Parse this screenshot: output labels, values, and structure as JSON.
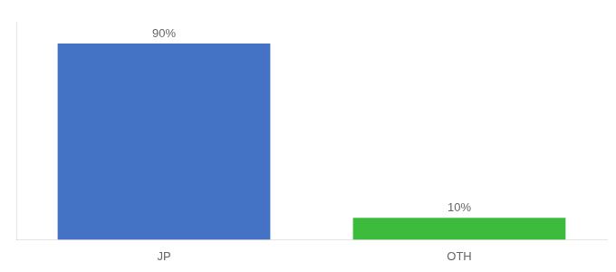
{
  "chart_data": {
    "type": "bar",
    "categories": [
      "JP",
      "OTH"
    ],
    "values": [
      90,
      10
    ],
    "colors": [
      "#4472c4",
      "#3dbb3d"
    ],
    "data_labels": true,
    "value_labels": [
      "90%",
      "10%"
    ],
    "ylim": [
      0,
      100
    ],
    "tick_labels": "x",
    "grid": false
  }
}
